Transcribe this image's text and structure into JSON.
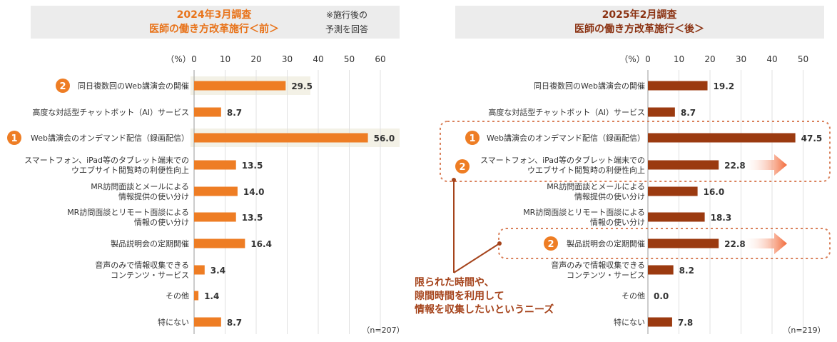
{
  "colors": {
    "bar_left": "#ee7d24",
    "bar_right": "#9b3a10",
    "title_left": "#e8731a",
    "title_right": "#8b3212",
    "title_bg": "#ececec",
    "highlight_bg": "#f3f1e6",
    "badge": "#ee7d24",
    "dotted": "#d9805a",
    "annotation": "#a5431b"
  },
  "chart_data": [
    {
      "type": "bar",
      "orientation": "horizontal",
      "title": [
        "2024年3月調査",
        "医師の働き方改革施行＜前＞"
      ],
      "note": [
        "※施行後の",
        "予測を回答"
      ],
      "unit_label": "（%）",
      "xlim": [
        0,
        60
      ],
      "ticks": [
        "0",
        "10",
        "20",
        "30",
        "40",
        "50",
        "60"
      ],
      "n_label": "（n=207）",
      "categories": [
        [
          "同日複数回のWeb講演会の開催"
        ],
        [
          "高度な対話型チャットボット（AI）サービス"
        ],
        [
          "Web講演会のオンデマンド配信（録画配信）"
        ],
        [
          "スマートフォン、iPad等のタブレット端末での",
          "ウエブサイト閲覧時の利便性向上"
        ],
        [
          "MR訪問面談とメールによる",
          "情報提供の使い分け"
        ],
        [
          "MR訪問面談とリモート面談による",
          "情報の使い分け"
        ],
        [
          "製品説明会の定期開催"
        ],
        [
          "音声のみで情報収集できる",
          "コンテンツ・サービス"
        ],
        [
          "その他"
        ],
        [
          "特にない"
        ]
      ],
      "values": [
        29.5,
        8.7,
        56.0,
        13.5,
        14.0,
        13.5,
        16.4,
        3.4,
        1.4,
        8.7
      ],
      "value_labels": [
        "29.5",
        "8.7",
        "56.0",
        "13.5",
        "14.0",
        "13.5",
        "16.4",
        "3.4",
        "1.4",
        "8.7"
      ],
      "ranks": [
        "2",
        "",
        "1",
        "",
        "",
        "",
        "",
        "",
        "",
        ""
      ]
    },
    {
      "type": "bar",
      "orientation": "horizontal",
      "title": [
        "2025年2月調査",
        "医師の働き方改革施行＜後＞"
      ],
      "unit_label": "（%）",
      "xlim": [
        0,
        50
      ],
      "ticks": [
        "0",
        "10",
        "20",
        "30",
        "40",
        "50"
      ],
      "n_label": "（n=219）",
      "categories": [
        [
          "同日複数回のWeb講演会の開催"
        ],
        [
          "高度な対話型チャットボット（AI）サービス"
        ],
        [
          "Web講演会のオンデマンド配信（録画配信）"
        ],
        [
          "スマートフォン、iPad等のタブレット端末での",
          "ウエブサイト閲覧時の利便性向上"
        ],
        [
          "MR訪問面談とメールによる",
          "情報提供の使い分け"
        ],
        [
          "MR訪問面談とリモート面談による",
          "情報の使い分け"
        ],
        [
          "製品説明会の定期開催"
        ],
        [
          "音声のみで情報収集できる",
          "コンテンツ・サービス"
        ],
        [
          "その他"
        ],
        [
          "特にない"
        ]
      ],
      "values": [
        19.2,
        8.7,
        47.5,
        22.8,
        16.0,
        18.3,
        22.8,
        8.2,
        0.0,
        7.8
      ],
      "value_labels": [
        "19.2",
        "8.7",
        "47.5",
        "22.8",
        "16.0",
        "18.3",
        "22.8",
        "8.2",
        "0.0",
        "7.8"
      ],
      "ranks": [
        "",
        "",
        "1",
        "2",
        "",
        "",
        "2",
        "",
        "",
        ""
      ],
      "annotation": [
        "限られた時間や、",
        "隙間時間を利用して",
        "情報を収集したいというニーズ"
      ]
    }
  ]
}
